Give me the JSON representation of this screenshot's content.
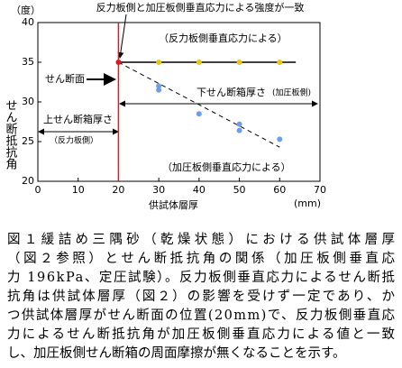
{
  "chart_data": {
    "type": "scatter",
    "title": "反力板側と加圧板側垂直応力による強度が一致",
    "ylabel_unit": "（度）",
    "ylabel": "せん断抵抗角",
    "xlabel": "供試体層厚",
    "xlabel_unit": "(mm)",
    "xlim": [
      0,
      70
    ],
    "xticks": [
      0,
      10,
      20,
      30,
      40,
      50,
      60,
      70
    ],
    "ylim": [
      20,
      40
    ],
    "yticks": [
      20,
      25,
      30,
      35,
      40
    ],
    "series": [
      {
        "color": "#e8151b",
        "x": [
          20
        ],
        "values": [
          35
        ]
      },
      {
        "color": "#e6c619",
        "x": [
          30,
          40,
          50,
          60
        ],
        "values": [
          35,
          35,
          35,
          35
        ]
      },
      {
        "color": "#6f9ee8",
        "x": [
          30,
          30,
          40,
          50,
          50,
          60
        ],
        "values": [
          32.0,
          31.5,
          28.5,
          27.2,
          26.4,
          25.3
        ]
      }
    ],
    "lines": [
      {
        "color": "#000000",
        "dashed": false,
        "x": [
          20,
          64
        ],
        "values": [
          35,
          35
        ]
      },
      {
        "color": "#000000",
        "dashed": true,
        "x": [
          20,
          60
        ],
        "values": [
          35,
          24.3
        ]
      }
    ],
    "vline": {
      "x": 20,
      "color": "#e8151b"
    },
    "annotations": [
      "（反力板側垂直応力による）",
      "せん断面",
      "下せん断箱厚さ",
      "(加圧板側)",
      "上せん断箱厚さ",
      "（反力板側）",
      "（加圧板側垂直応力による）"
    ]
  },
  "caption": [
    "図１緩詰め三隅砂（乾燥状態）における供試体層厚",
    "（図２参照）とせん断抵抗角の関係（加圧板側垂直応",
    "力 196kPa、定圧試験）。反力板側垂直応力によるせん断抵",
    "抗角は供試体層厚（図２）の影響を受けず一定であり、か",
    "つ供試体層厚がせん断面の位置(20mm)で、反力板側垂直応",
    "力によるせん断抵抗角が加圧板側垂直応力による値と一致",
    "し、加圧板側せん断箱の周面摩擦が無くなることを示す。"
  ]
}
